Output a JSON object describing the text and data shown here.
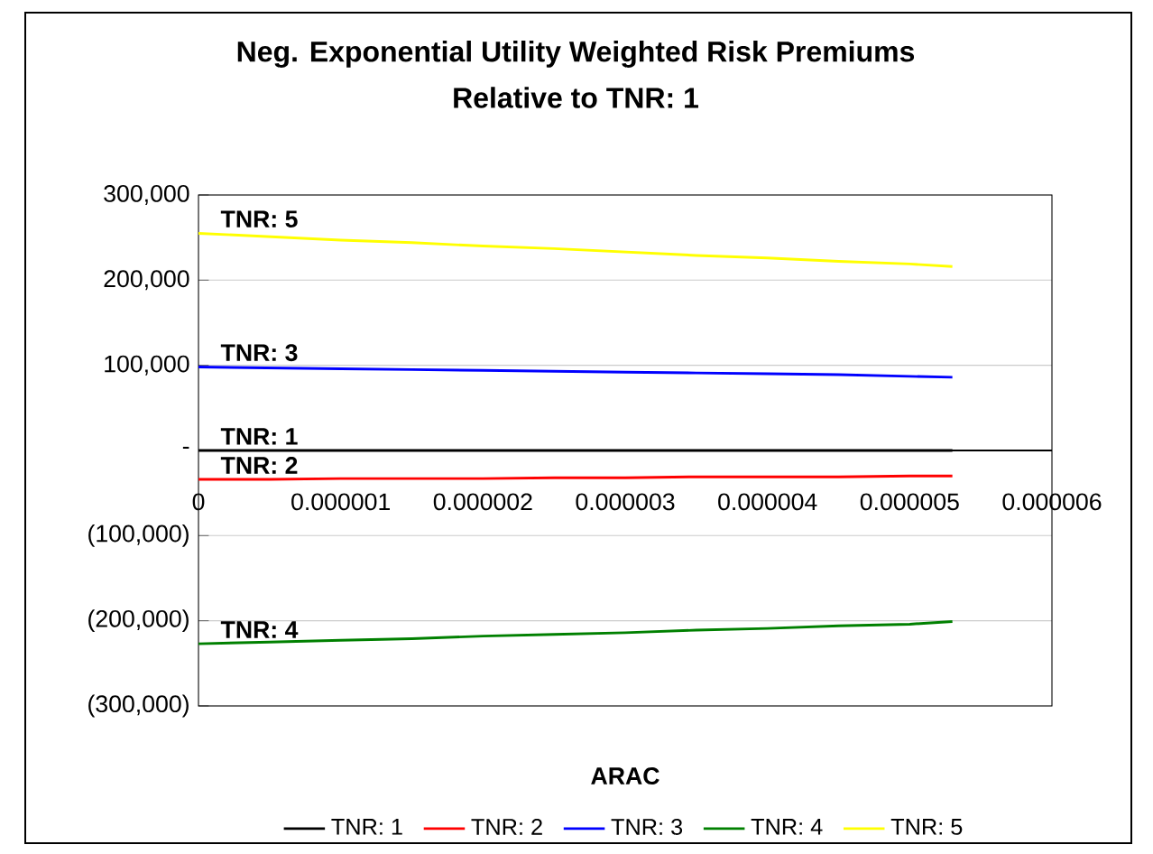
{
  "chart_data": {
    "type": "line",
    "title": "Neg. Exponential Utility Weighted Risk Premiums",
    "subtitle": "Relative to TNR: 1",
    "xlabel": "ARAC",
    "x": [
      0,
      5e-07,
      1e-06,
      1.5e-06,
      2e-06,
      2.5e-06,
      3e-06,
      3.5e-06,
      4e-06,
      4.5e-06,
      5e-06,
      5.3e-06
    ],
    "series": [
      {
        "name": "TNR: 1",
        "color": "#000000",
        "values": [
          0,
          0,
          0,
          0,
          0,
          0,
          0,
          0,
          0,
          0,
          0,
          0
        ]
      },
      {
        "name": "TNR: 2",
        "color": "#ff0000",
        "values": [
          -34000,
          -34000,
          -33000,
          -33000,
          -33000,
          -32000,
          -32000,
          -31000,
          -31000,
          -31000,
          -30000,
          -30000
        ]
      },
      {
        "name": "TNR: 3",
        "color": "#0000ff",
        "values": [
          98000,
          97000,
          96000,
          95000,
          94000,
          93000,
          92000,
          91000,
          90000,
          89000,
          87000,
          86000
        ]
      },
      {
        "name": "TNR: 4",
        "color": "#008000",
        "values": [
          -227000,
          -225000,
          -223000,
          -221000,
          -218000,
          -216000,
          -214000,
          -211000,
          -209000,
          -206000,
          -204000,
          -201000
        ]
      },
      {
        "name": "TNR: 5",
        "color": "#ffff00",
        "values": [
          255000,
          251000,
          247000,
          244000,
          240000,
          237000,
          233000,
          229000,
          226000,
          222000,
          219000,
          216000
        ]
      }
    ],
    "annotations": [
      {
        "text": "TNR: 5",
        "y": 255000
      },
      {
        "text": "TNR: 3",
        "y": 98000
      },
      {
        "text": "TNR: 1",
        "y": 0
      },
      {
        "text": "TNR: 2",
        "y": -34000
      },
      {
        "text": "TNR: 4",
        "y": -227000
      }
    ],
    "xlim": [
      0,
      6e-06
    ],
    "xticks": [
      0,
      {
        "value": 1e-06,
        "label": "0.000001"
      },
      {
        "value": 2e-06,
        "label": "0.000002"
      },
      {
        "value": 3e-06,
        "label": "0.000003"
      },
      {
        "value": 4e-06,
        "label": "0.000004"
      },
      {
        "value": 5e-06,
        "label": "0.000005"
      },
      {
        "value": 6e-06,
        "label": "0.000006"
      }
    ],
    "ylim": [
      -300000,
      300000
    ],
    "yticks": [
      {
        "value": -300000,
        "label": "(300,000)"
      },
      {
        "value": -200000,
        "label": "(200,000)"
      },
      {
        "value": -100000,
        "label": "(100,000)"
      },
      {
        "value": 0,
        "label": "-"
      },
      {
        "value": 100000,
        "label": "100,000"
      },
      {
        "value": 200000,
        "label": "200,000"
      },
      {
        "value": 300000,
        "label": "300,000"
      }
    ],
    "grid": "y",
    "legend": "bottom",
    "marker": "none",
    "line_style": "solid"
  }
}
